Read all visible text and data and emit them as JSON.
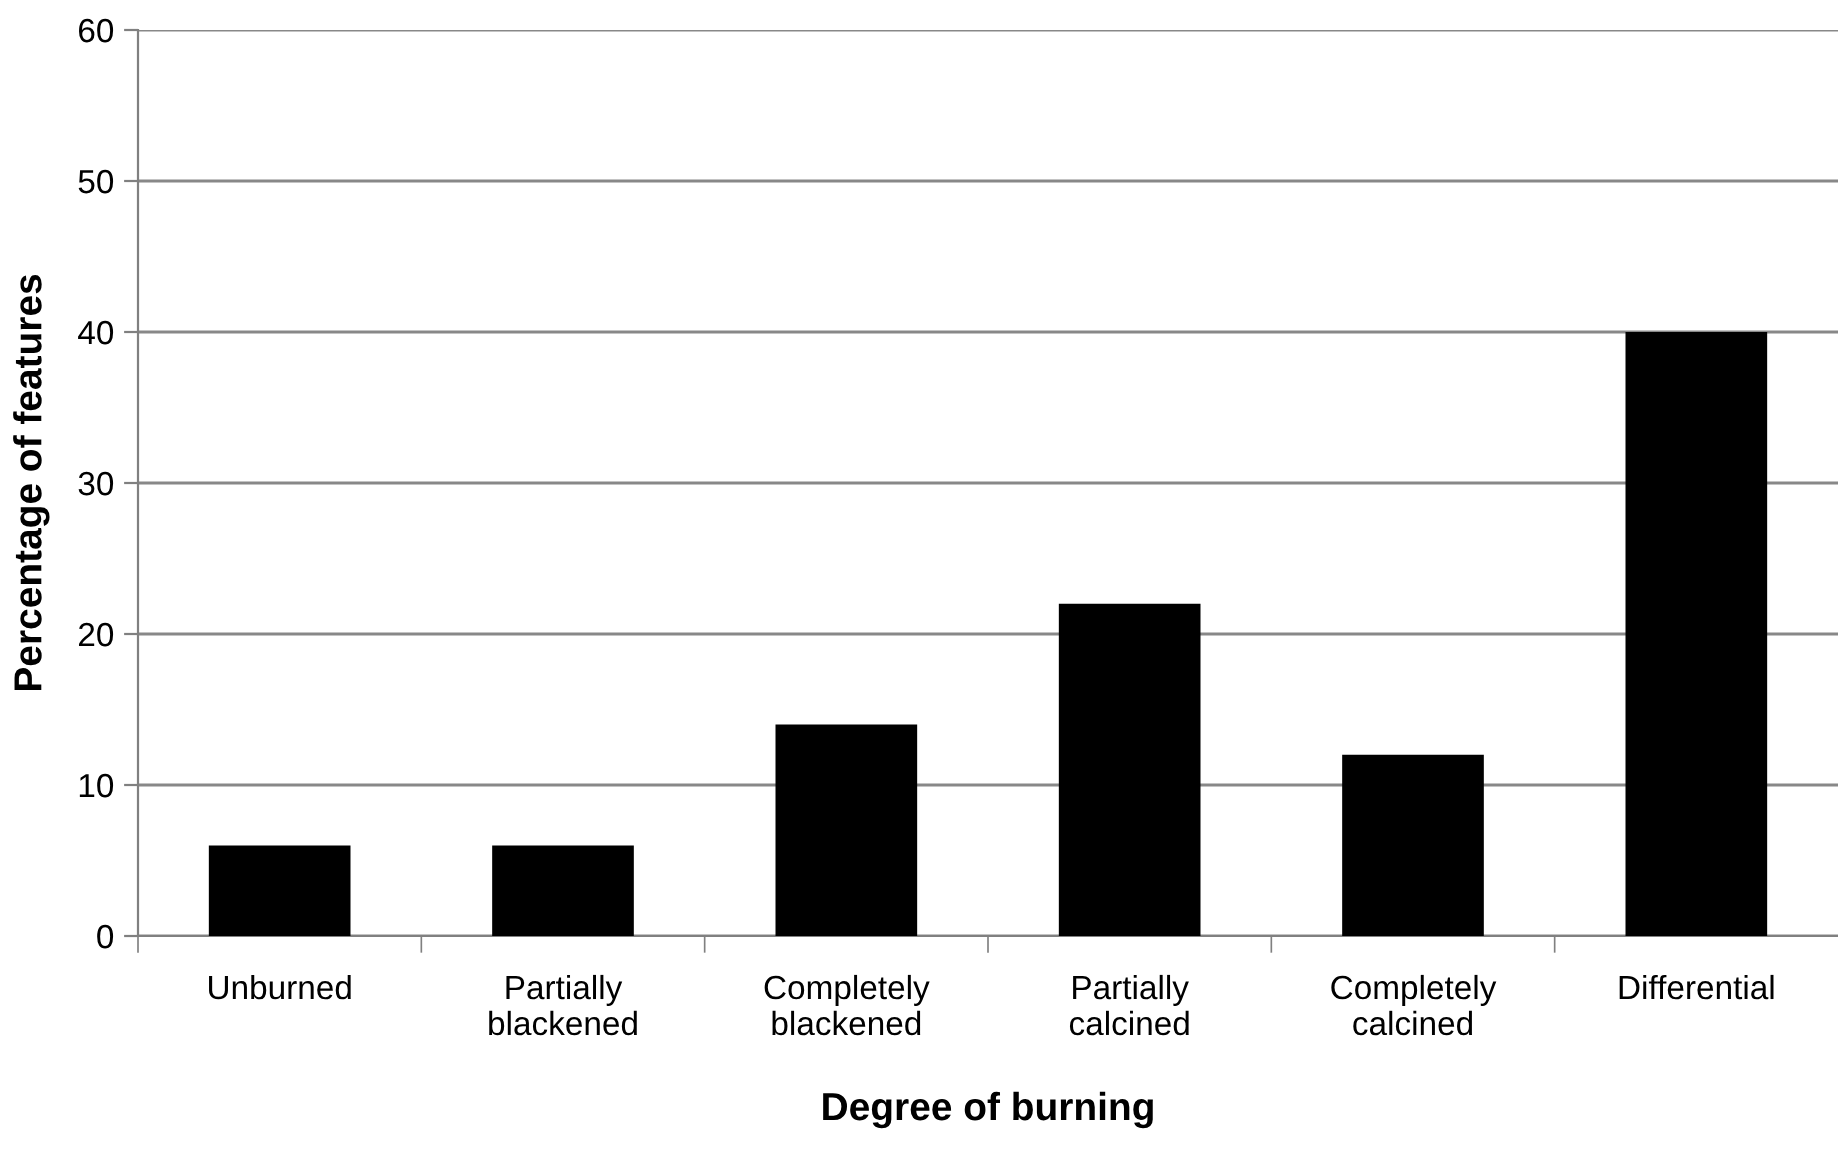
{
  "chart_data": {
    "type": "bar",
    "xlabel": "Degree of burning",
    "ylabel": "Percentage of features",
    "categories": [
      "Unburned",
      "Partially\nblackened",
      "Completely\nblackened",
      "Partially\ncalcined",
      "Completely\ncalcined",
      "Differential"
    ],
    "values": [
      6,
      6,
      14,
      22,
      12,
      40
    ],
    "color": "#000000",
    "ylim": [
      0,
      60
    ],
    "yticks": [
      0,
      10,
      20,
      30,
      40,
      50,
      60
    ],
    "grid": "y",
    "legend": false
  }
}
